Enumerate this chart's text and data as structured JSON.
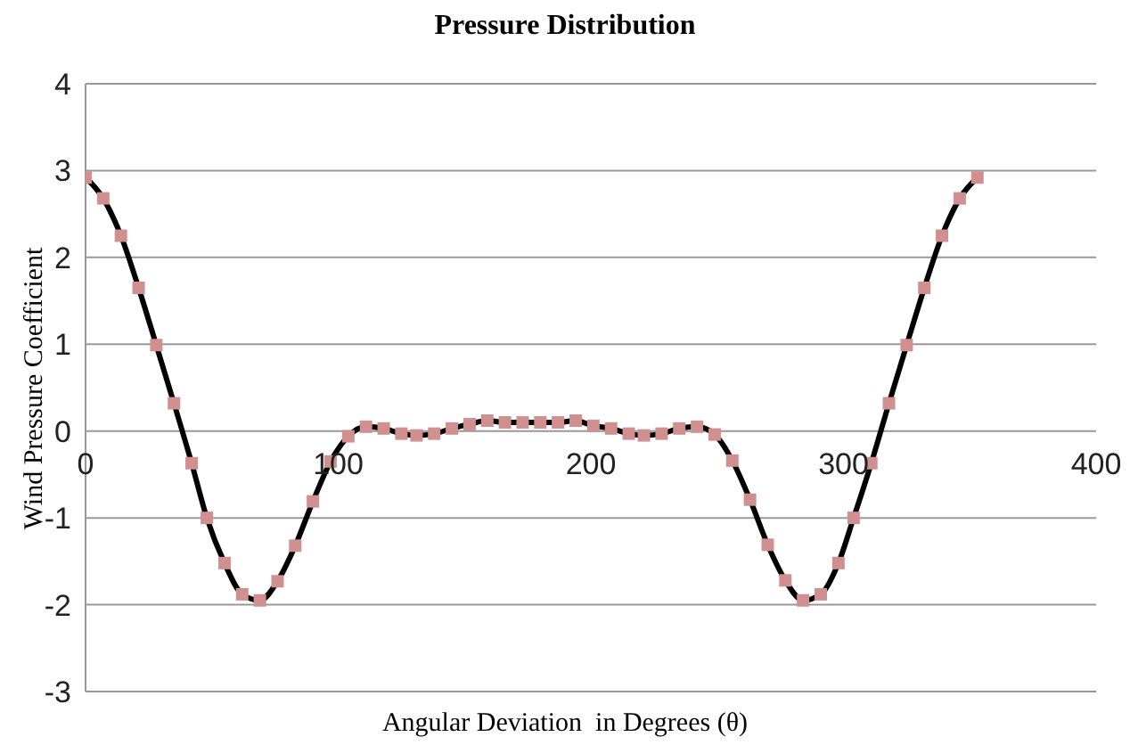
{
  "chart_data": {
    "type": "line",
    "title": "Pressure Distribution",
    "xlabel": "Angular Deviation  in Degrees (θ)",
    "ylabel": "Wind Pressure Coefficient",
    "x": [
      0,
      7,
      14,
      21,
      28,
      35,
      42,
      48,
      55,
      62,
      69,
      76,
      83,
      90,
      97,
      104,
      111,
      118,
      125,
      131,
      138,
      145,
      152,
      159,
      166,
      173,
      180,
      187,
      194,
      201,
      208,
      215,
      221,
      228,
      235,
      242,
      249,
      256,
      263,
      270,
      277,
      284,
      291,
      298,
      304,
      311,
      318,
      325,
      332,
      339,
      346,
      353
    ],
    "series": [
      {
        "color": "#000000",
        "colors": [
          "#d09090",
          "#d09090",
          "#d09090",
          "#d09090",
          "#d09090",
          "#d09090",
          "#d09090",
          "#d09090",
          "#d09090",
          "#d09090",
          "#d09090",
          "#d09090",
          "#d09090",
          "#d09090",
          "#d09090",
          "#d09090",
          "#d09090",
          "#d09090",
          "#d09090",
          "#d09090",
          "#d09090",
          "#d09090",
          "#d09090",
          "#d09090",
          "#d09090",
          "#d09090",
          "#d09090",
          "#d09090",
          "#d09090",
          "#d09090",
          "#d09090",
          "#d09090",
          "#d09090",
          "#d09090",
          "#d09090",
          "#d09090",
          "#d09090",
          "#d09090",
          "#d09090",
          "#d09090",
          "#d09090",
          "#d09090",
          "#d09090",
          "#d09090",
          "#d09090",
          "#d09090",
          "#d09090",
          "#d09090",
          "#d09090",
          "#d09090",
          "#d09090",
          "#d09090"
        ],
        "values": [
          2.92,
          2.68,
          2.25,
          1.65,
          0.99,
          0.32,
          -0.37,
          -1.0,
          -1.52,
          -1.88,
          -1.95,
          -1.73,
          -1.32,
          -0.81,
          -0.35,
          -0.06,
          0.05,
          0.03,
          -0.03,
          -0.05,
          -0.03,
          0.03,
          0.08,
          0.12,
          0.1,
          0.1,
          0.1,
          0.1,
          0.12,
          0.06,
          0.03,
          -0.03,
          -0.05,
          -0.03,
          0.03,
          0.05,
          -0.04,
          -0.34,
          -0.79,
          -1.31,
          -1.72,
          -1.95,
          -1.88,
          -1.52,
          -1.0,
          -0.37,
          0.32,
          0.99,
          1.65,
          2.25,
          2.68,
          2.92
        ]
      }
    ],
    "xlim": [
      0,
      400
    ],
    "xticks": [
      0,
      100,
      200,
      300,
      400
    ],
    "ylim": [
      -3,
      4
    ],
    "yticks": [
      -3,
      -2,
      -1,
      0,
      1,
      2,
      3,
      4
    ],
    "grid": "y",
    "marker": "square",
    "legend": false
  }
}
